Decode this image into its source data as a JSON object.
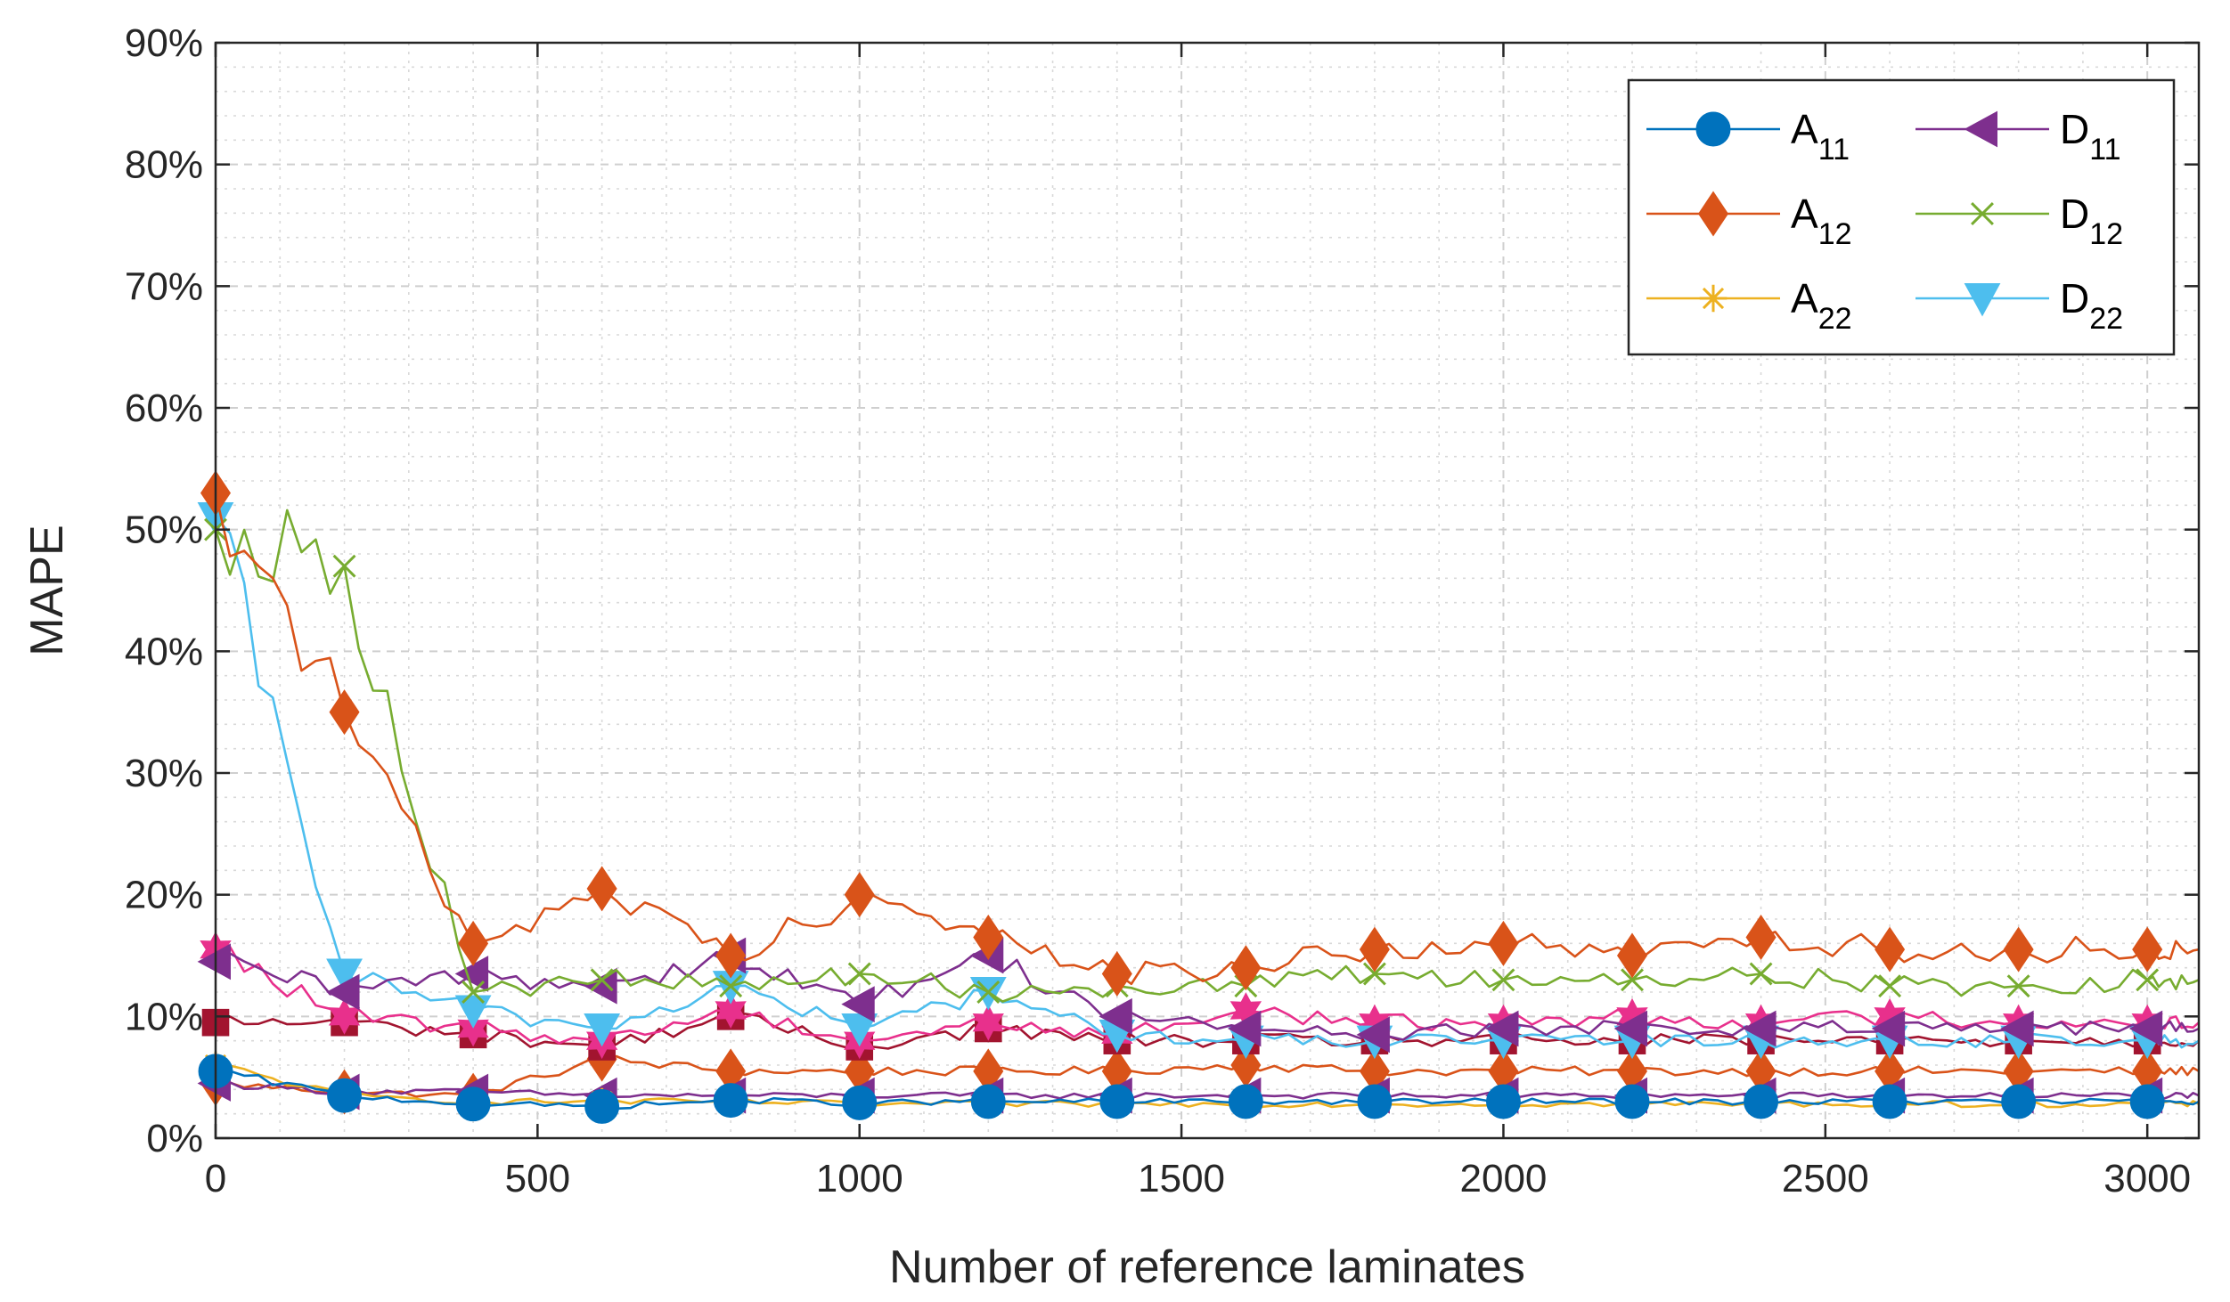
{
  "chart_data": {
    "type": "line",
    "title": "",
    "xlabel": "Number of reference laminates",
    "ylabel": "MAPE",
    "xlim": [
      0,
      3080
    ],
    "ylim": [
      0,
      90
    ],
    "xticks": [
      0,
      500,
      1000,
      1500,
      2000,
      2500,
      3000
    ],
    "xtick_labels": [
      "0",
      "500",
      "1000",
      "1500",
      "2000",
      "2500",
      "3000"
    ],
    "yticks": [
      0,
      10,
      20,
      30,
      40,
      50,
      60,
      70,
      80,
      90
    ],
    "ytick_labels": [
      "0%",
      "10%",
      "20%",
      "30%",
      "40%",
      "50%",
      "60%",
      "70%",
      "80%",
      "90%"
    ],
    "grid": true,
    "legend_position": "top-right",
    "colors": {
      "A11": "#0072BD",
      "A12": "#D95319",
      "A22": "#EDB120",
      "D11": "#7E2F8E",
      "D12": "#77AC30",
      "D22": "#4DBEEE",
      "extra_magenta": "#E8308C",
      "extra_crimson": "#A2142F"
    },
    "marker_x": [
      0,
      200,
      400,
      600,
      800,
      1000,
      1200,
      1400,
      1600,
      1800,
      2000,
      2200,
      2400,
      2600,
      2800,
      3000
    ],
    "series": [
      {
        "key": "A11",
        "name": "A",
        "sub": "11",
        "marker": "circle",
        "color": "#0072BD",
        "in_legend": true,
        "values": [
          5.5,
          3.5,
          2.8,
          2.6,
          3.1,
          2.9,
          3.0,
          3.0,
          3.0,
          3.0,
          3.0,
          3.0,
          3.0,
          3.0,
          3.0,
          3.0
        ]
      },
      {
        "key": "A12a",
        "name": "A",
        "sub": "12",
        "marker": "diamond",
        "color": "#D95319",
        "in_legend": true,
        "values": [
          53.0,
          35.0,
          16.0,
          20.5,
          15.0,
          20.0,
          16.5,
          13.5,
          14.0,
          15.5,
          16.0,
          15.0,
          16.5,
          15.5,
          15.5,
          15.5
        ]
      },
      {
        "key": "A12b",
        "name": "",
        "sub": "",
        "marker": "diamond",
        "color": "#D95319",
        "in_legend": false,
        "values": [
          4.5,
          3.8,
          3.5,
          6.5,
          5.5,
          5.5,
          5.5,
          5.5,
          6.0,
          5.5,
          5.5,
          5.5,
          5.5,
          5.5,
          5.5,
          5.5
        ]
      },
      {
        "key": "A22",
        "name": "A",
        "sub": "22",
        "marker": "asterisk",
        "color": "#EDB120",
        "in_legend": true,
        "values": [
          6.0,
          3.5,
          3.0,
          3.0,
          3.0,
          2.8,
          2.8,
          2.8,
          2.8,
          2.8,
          2.8,
          2.8,
          2.8,
          2.8,
          2.8,
          2.8
        ]
      },
      {
        "key": "D11a",
        "name": "D",
        "sub": "11",
        "marker": "triangle-left",
        "color": "#7E2F8E",
        "in_legend": true,
        "values": [
          14.5,
          12.0,
          13.5,
          12.5,
          15.0,
          11.0,
          15.0,
          10.0,
          9.0,
          8.5,
          9.0,
          9.0,
          9.0,
          9.0,
          9.0,
          9.0
        ]
      },
      {
        "key": "D11b",
        "name": "",
        "sub": "",
        "marker": "triangle-left",
        "color": "#7E2F8E",
        "in_legend": false,
        "values": [
          4.5,
          3.8,
          3.8,
          3.5,
          3.5,
          3.5,
          3.5,
          3.5,
          3.5,
          3.5,
          3.5,
          3.5,
          3.5,
          3.5,
          3.5,
          3.5
        ]
      },
      {
        "key": "D12",
        "name": "D",
        "sub": "12",
        "marker": "x",
        "color": "#77AC30",
        "in_legend": true,
        "values": [
          50.0,
          47.0,
          12.0,
          13.0,
          12.5,
          13.5,
          12.0,
          12.5,
          12.5,
          13.5,
          13.0,
          13.0,
          13.5,
          12.5,
          12.5,
          13.0
        ]
      },
      {
        "key": "D22",
        "name": "D",
        "sub": "22",
        "marker": "triangle-down",
        "color": "#4DBEEE",
        "in_legend": true,
        "values": [
          51.0,
          13.5,
          10.5,
          9.0,
          12.5,
          9.0,
          12.0,
          8.5,
          8.0,
          8.0,
          8.0,
          8.0,
          8.0,
          8.0,
          8.0,
          8.0
        ]
      },
      {
        "key": "M1",
        "name": "",
        "sub": "",
        "marker": "hexagram",
        "color": "#E8308C",
        "in_legend": false,
        "values": [
          15.5,
          10.0,
          9.0,
          8.0,
          10.5,
          8.0,
          9.5,
          8.5,
          10.5,
          9.5,
          9.5,
          10.0,
          9.5,
          10.0,
          9.5,
          9.5
        ]
      },
      {
        "key": "M2",
        "name": "",
        "sub": "",
        "marker": "square",
        "color": "#A2142F",
        "in_legend": false,
        "values": [
          9.5,
          9.5,
          8.5,
          7.5,
          10.0,
          7.5,
          9.0,
          8.0,
          8.0,
          8.0,
          8.0,
          8.0,
          8.0,
          8.0,
          8.0,
          8.0
        ]
      }
    ]
  }
}
